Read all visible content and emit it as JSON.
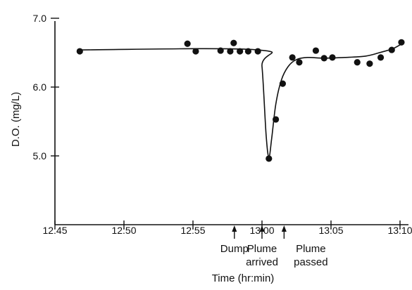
{
  "chart_data": {
    "type": "scatter",
    "title": "",
    "xlabel": "Time (hr:min)",
    "ylabel": "D.O. (mg/L)",
    "x_unit": "minutes after 12:45",
    "xlim": [
      0,
      25
    ],
    "ylim": [
      4.0,
      7.0
    ],
    "grid": false,
    "legend": "none",
    "x_ticks": [
      {
        "value": 0,
        "label": "12:45"
      },
      {
        "value": 5,
        "label": "12:50"
      },
      {
        "value": 10,
        "label": "12:55"
      },
      {
        "value": 15,
        "label": "13:00"
      },
      {
        "value": 20,
        "label": "13:05"
      },
      {
        "value": 25,
        "label": "13:10"
      }
    ],
    "y_ticks": [
      {
        "value": 5.0,
        "label": "5.0"
      },
      {
        "value": 6.0,
        "label": "6.0"
      },
      {
        "value": 7.0,
        "label": "7.0"
      }
    ],
    "series": [
      {
        "kind": "points",
        "x": [
          1.8,
          9.6,
          10.2,
          12.0,
          12.7,
          12.95,
          13.4,
          14.0,
          14.7,
          15.5,
          16.0,
          16.5,
          17.2,
          17.7,
          18.9,
          19.5,
          20.1,
          21.9,
          22.8,
          23.6,
          24.4,
          25.1
        ],
        "y": [
          6.52,
          6.63,
          6.52,
          6.53,
          6.52,
          6.64,
          6.52,
          6.52,
          6.52,
          4.96,
          5.53,
          6.05,
          6.43,
          6.36,
          6.53,
          6.42,
          6.43,
          6.36,
          6.34,
          6.43,
          6.54,
          6.65
        ]
      },
      {
        "kind": "fit-curve",
        "x": [
          1.8,
          14.7,
          15.0,
          15.3,
          15.5,
          15.7,
          16.0,
          16.4,
          16.9,
          17.5,
          18.3,
          19.5,
          21.0,
          22.5,
          23.5,
          24.5,
          25.3
        ],
        "y": [
          6.54,
          6.54,
          6.3,
          5.3,
          4.98,
          5.25,
          5.75,
          6.1,
          6.3,
          6.4,
          6.43,
          6.42,
          6.43,
          6.45,
          6.5,
          6.56,
          6.65
        ]
      }
    ],
    "annotations": [
      {
        "x": 13.0,
        "lines": [
          "Dump"
        ]
      },
      {
        "x": 15.0,
        "lines": [
          "Plume",
          "arrived"
        ]
      },
      {
        "x": 16.6,
        "lines": [
          "Plume",
          "passed"
        ]
      }
    ]
  }
}
